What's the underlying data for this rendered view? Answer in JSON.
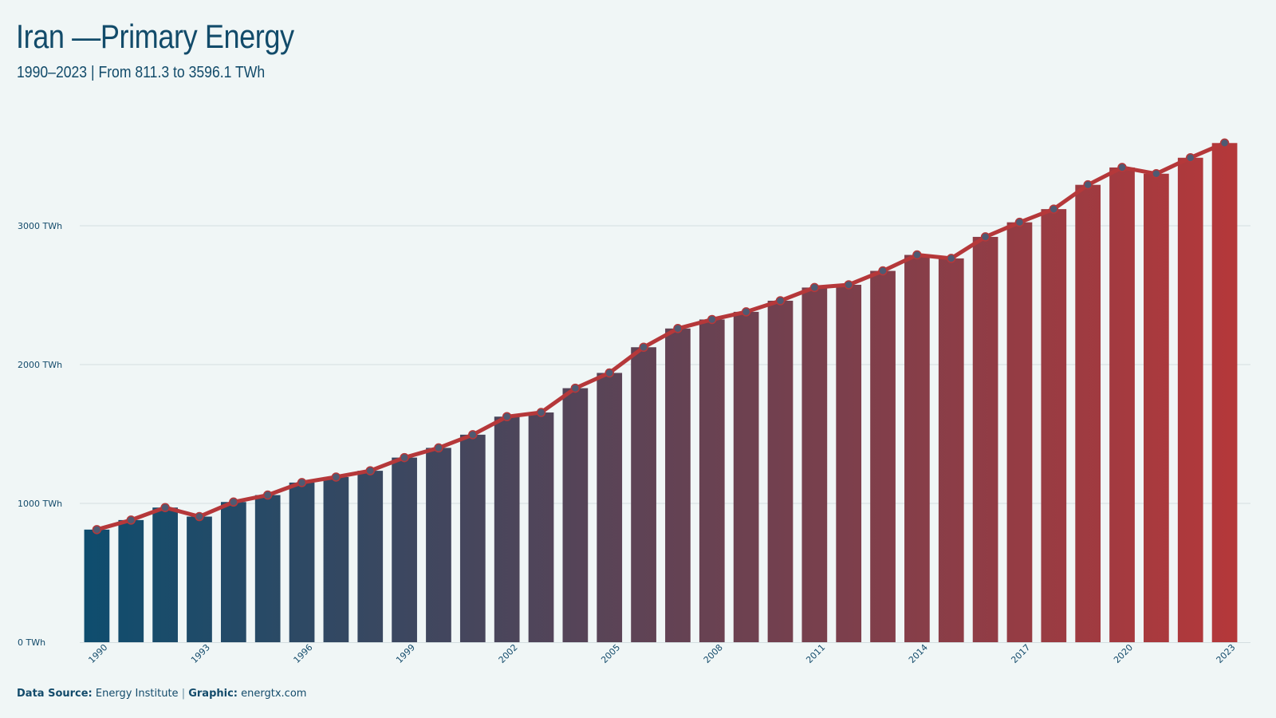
{
  "header": {
    "title": "Iran —Primary Energy",
    "subtitle": "1990–2023 | From 811.3 to 3596.1 TWh"
  },
  "footer": {
    "source_label": "Data Source:",
    "source_value": "Energy Institute",
    "separator": "|",
    "graphic_label": "Graphic:",
    "graphic_value": "energtx.com"
  },
  "colors": {
    "bar_start": "#0e4d6e",
    "bar_end": "#b5383a",
    "line": "#b5383a",
    "marker_fill": "#4f5a72",
    "grid": "#d4dee0",
    "text": "#134b6b"
  },
  "chart_data": {
    "type": "bar",
    "title": "Iran —Primary Energy",
    "subtitle": "1990–2023 | From 811.3 to 3596.1 TWh",
    "xlabel": "",
    "ylabel": "",
    "unit": "TWh",
    "ylim": [
      0,
      3700
    ],
    "yticks": [
      0,
      1000,
      2000,
      3000
    ],
    "ytick_labels": [
      "0 TWh",
      "1000 TWh",
      "2000 TWh",
      "3000 TWh"
    ],
    "xtick_labels": [
      "1990",
      "1993",
      "1996",
      "1999",
      "2002",
      "2005",
      "2008",
      "2011",
      "2014",
      "2017",
      "2020",
      "2023"
    ],
    "grid": true,
    "overlay_line": true,
    "categories": [
      "1990",
      "1991",
      "1992",
      "1993",
      "1994",
      "1995",
      "1996",
      "1997",
      "1998",
      "1999",
      "2000",
      "2001",
      "2002",
      "2003",
      "2004",
      "2005",
      "2006",
      "2007",
      "2008",
      "2009",
      "2010",
      "2011",
      "2012",
      "2013",
      "2014",
      "2015",
      "2016",
      "2017",
      "2018",
      "2019",
      "2020",
      "2021",
      "2022",
      "2023"
    ],
    "values": [
      811.3,
      880,
      970,
      905,
      1010,
      1060,
      1150,
      1190,
      1235,
      1330,
      1400,
      1495,
      1625,
      1655,
      1830,
      1940,
      2125,
      2260,
      2325,
      2380,
      2460,
      2555,
      2575,
      2675,
      2790,
      2765,
      2920,
      3025,
      3120,
      3295,
      3420,
      3375,
      3490,
      3596.1
    ]
  }
}
